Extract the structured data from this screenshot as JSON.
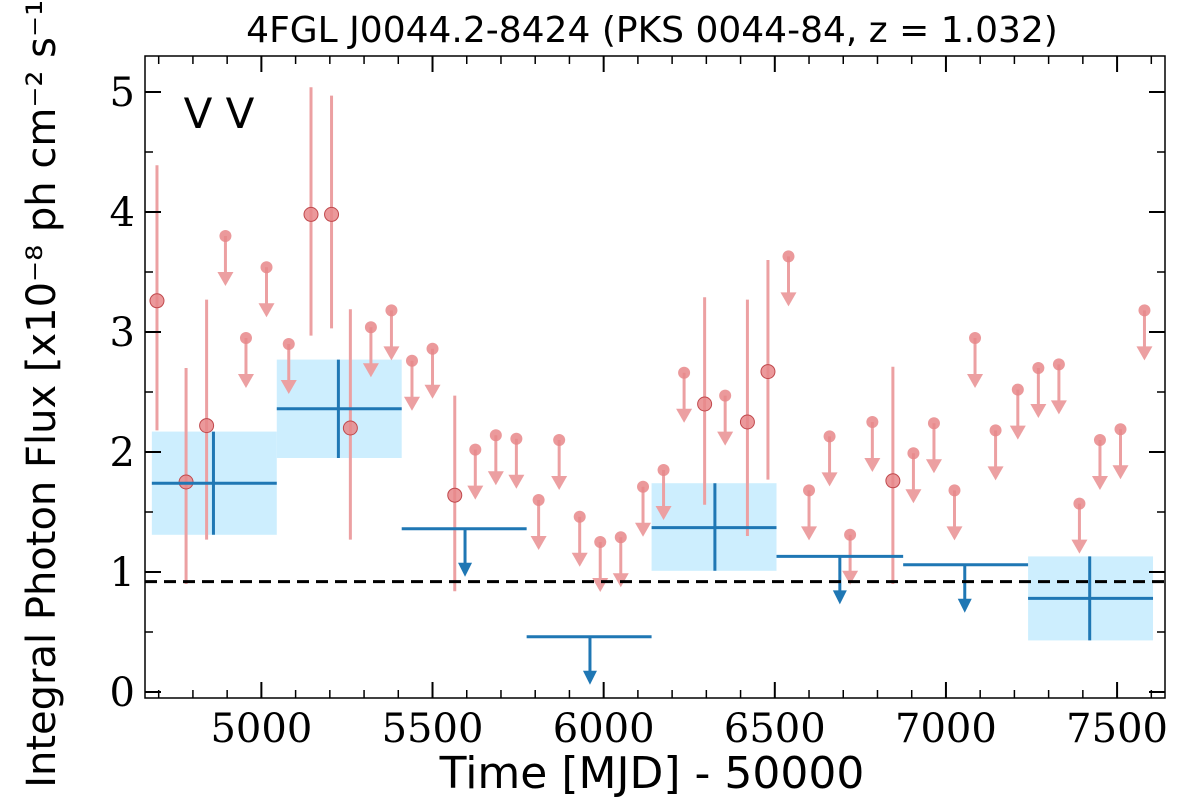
{
  "chart_data": {
    "type": "scatter",
    "title": "4FGL J0044.2-8424 (PKS 0044-84, z = 1.032)",
    "xlabel": "Time [MJD] - 50000",
    "ylabel": "Integral Photon Flux [x10⁻⁸ ph cm⁻² s⁻¹]",
    "xlim": [
      4660,
      7640
    ],
    "ylim": [
      -0.05,
      5.3
    ],
    "xticks": [
      5000,
      5500,
      6000,
      6500,
      7000,
      7500
    ],
    "yticks": [
      0,
      1,
      2,
      3,
      4,
      5
    ],
    "reference_line": {
      "y": 0.92,
      "style": "dashed",
      "color": "#000000"
    },
    "markers": [
      {
        "label": "V",
        "color": "#1f77b4"
      },
      {
        "label": "V",
        "color": "#d62728"
      }
    ],
    "colors": {
      "blue": "#1f77b4",
      "red_points": "#e8878a",
      "red_bars": "#eca0a2",
      "box_fill": "#cdeefe"
    },
    "series": [
      {
        "color": "#1f77b4",
        "points": [
          {
            "x": 4860,
            "x0": 4680,
            "x1": 5045,
            "y": 1.74,
            "ylo": 1.31,
            "yhi": 2.17,
            "upper_limit": false
          },
          {
            "x": 5225,
            "x0": 5045,
            "x1": 5410,
            "y": 2.36,
            "ylo": 1.95,
            "yhi": 2.77,
            "upper_limit": false
          },
          {
            "x": 5595,
            "x0": 5410,
            "x1": 5775,
            "y": 1.36,
            "upper_limit": true
          },
          {
            "x": 5960,
            "x0": 5775,
            "x1": 6140,
            "y": 0.46,
            "upper_limit": true
          },
          {
            "x": 6325,
            "x0": 6140,
            "x1": 6505,
            "y": 1.37,
            "ylo": 1.01,
            "yhi": 1.74,
            "upper_limit": false
          },
          {
            "x": 6690,
            "x0": 6505,
            "x1": 6875,
            "y": 1.13,
            "upper_limit": true
          },
          {
            "x": 7055,
            "x0": 6875,
            "x1": 7240,
            "y": 1.06,
            "upper_limit": true
          },
          {
            "x": 7420,
            "x0": 7240,
            "x1": 7605,
            "y": 0.78,
            "ylo": 0.43,
            "yhi": 1.13,
            "upper_limit": false
          }
        ]
      },
      {
        "color": "#d62728",
        "points": [
          {
            "x": 4695,
            "y": 3.26,
            "ylo": 2.18,
            "yhi": 4.39,
            "upper_limit": false
          },
          {
            "x": 4780,
            "y": 1.75,
            "ylo": 0.9,
            "yhi": 2.7,
            "upper_limit": false
          },
          {
            "x": 4840,
            "y": 2.22,
            "ylo": 1.27,
            "yhi": 3.27,
            "upper_limit": false
          },
          {
            "x": 4895,
            "y": 3.8,
            "upper_limit": true
          },
          {
            "x": 4955,
            "y": 2.95,
            "upper_limit": true
          },
          {
            "x": 5015,
            "y": 3.54,
            "upper_limit": true
          },
          {
            "x": 5080,
            "y": 2.9,
            "upper_limit": true
          },
          {
            "x": 5145,
            "y": 3.98,
            "ylo": 2.97,
            "yhi": 5.04,
            "upper_limit": false
          },
          {
            "x": 5205,
            "y": 3.98,
            "ylo": 3.03,
            "yhi": 4.97,
            "upper_limit": false
          },
          {
            "x": 5260,
            "y": 2.2,
            "ylo": 1.27,
            "yhi": 3.19,
            "upper_limit": false
          },
          {
            "x": 5320,
            "y": 3.04,
            "upper_limit": true
          },
          {
            "x": 5380,
            "y": 3.18,
            "upper_limit": true
          },
          {
            "x": 5440,
            "y": 2.76,
            "upper_limit": true
          },
          {
            "x": 5500,
            "y": 2.86,
            "upper_limit": true
          },
          {
            "x": 5565,
            "y": 1.64,
            "ylo": 0.84,
            "yhi": 2.47,
            "upper_limit": false
          },
          {
            "x": 5625,
            "y": 2.02,
            "upper_limit": true
          },
          {
            "x": 5685,
            "y": 2.14,
            "upper_limit": true
          },
          {
            "x": 5745,
            "y": 2.11,
            "upper_limit": true
          },
          {
            "x": 5810,
            "y": 1.6,
            "upper_limit": true
          },
          {
            "x": 5870,
            "y": 2.1,
            "upper_limit": true
          },
          {
            "x": 5930,
            "y": 1.46,
            "upper_limit": true
          },
          {
            "x": 5990,
            "y": 1.25,
            "upper_limit": true
          },
          {
            "x": 6050,
            "y": 1.29,
            "upper_limit": true
          },
          {
            "x": 6115,
            "y": 1.71,
            "upper_limit": true
          },
          {
            "x": 6175,
            "y": 1.85,
            "upper_limit": true
          },
          {
            "x": 6235,
            "y": 2.66,
            "upper_limit": true
          },
          {
            "x": 6295,
            "y": 2.4,
            "ylo": 1.56,
            "yhi": 3.29,
            "upper_limit": false
          },
          {
            "x": 6355,
            "y": 2.47,
            "upper_limit": true
          },
          {
            "x": 6420,
            "y": 2.25,
            "ylo": 1.3,
            "yhi": 3.27,
            "upper_limit": false
          },
          {
            "x": 6480,
            "y": 2.67,
            "ylo": 1.77,
            "yhi": 3.6,
            "upper_limit": false
          },
          {
            "x": 6540,
            "y": 3.63,
            "upper_limit": true
          },
          {
            "x": 6600,
            "y": 1.68,
            "upper_limit": true
          },
          {
            "x": 6660,
            "y": 2.13,
            "upper_limit": true
          },
          {
            "x": 6720,
            "y": 1.31,
            "upper_limit": true
          },
          {
            "x": 6785,
            "y": 2.25,
            "upper_limit": true
          },
          {
            "x": 6845,
            "y": 1.76,
            "ylo": 0.9,
            "yhi": 2.71,
            "upper_limit": false
          },
          {
            "x": 6905,
            "y": 1.99,
            "upper_limit": true
          },
          {
            "x": 6965,
            "y": 2.24,
            "upper_limit": true
          },
          {
            "x": 7025,
            "y": 1.68,
            "upper_limit": true
          },
          {
            "x": 7085,
            "y": 2.95,
            "upper_limit": true
          },
          {
            "x": 7145,
            "y": 2.18,
            "upper_limit": true
          },
          {
            "x": 7210,
            "y": 2.52,
            "upper_limit": true
          },
          {
            "x": 7270,
            "y": 2.7,
            "upper_limit": true
          },
          {
            "x": 7330,
            "y": 2.73,
            "upper_limit": true
          },
          {
            "x": 7390,
            "y": 1.57,
            "upper_limit": true
          },
          {
            "x": 7450,
            "y": 2.1,
            "upper_limit": true
          },
          {
            "x": 7510,
            "y": 2.19,
            "upper_limit": true
          },
          {
            "x": 7580,
            "y": 3.18,
            "upper_limit": true
          }
        ]
      }
    ]
  }
}
